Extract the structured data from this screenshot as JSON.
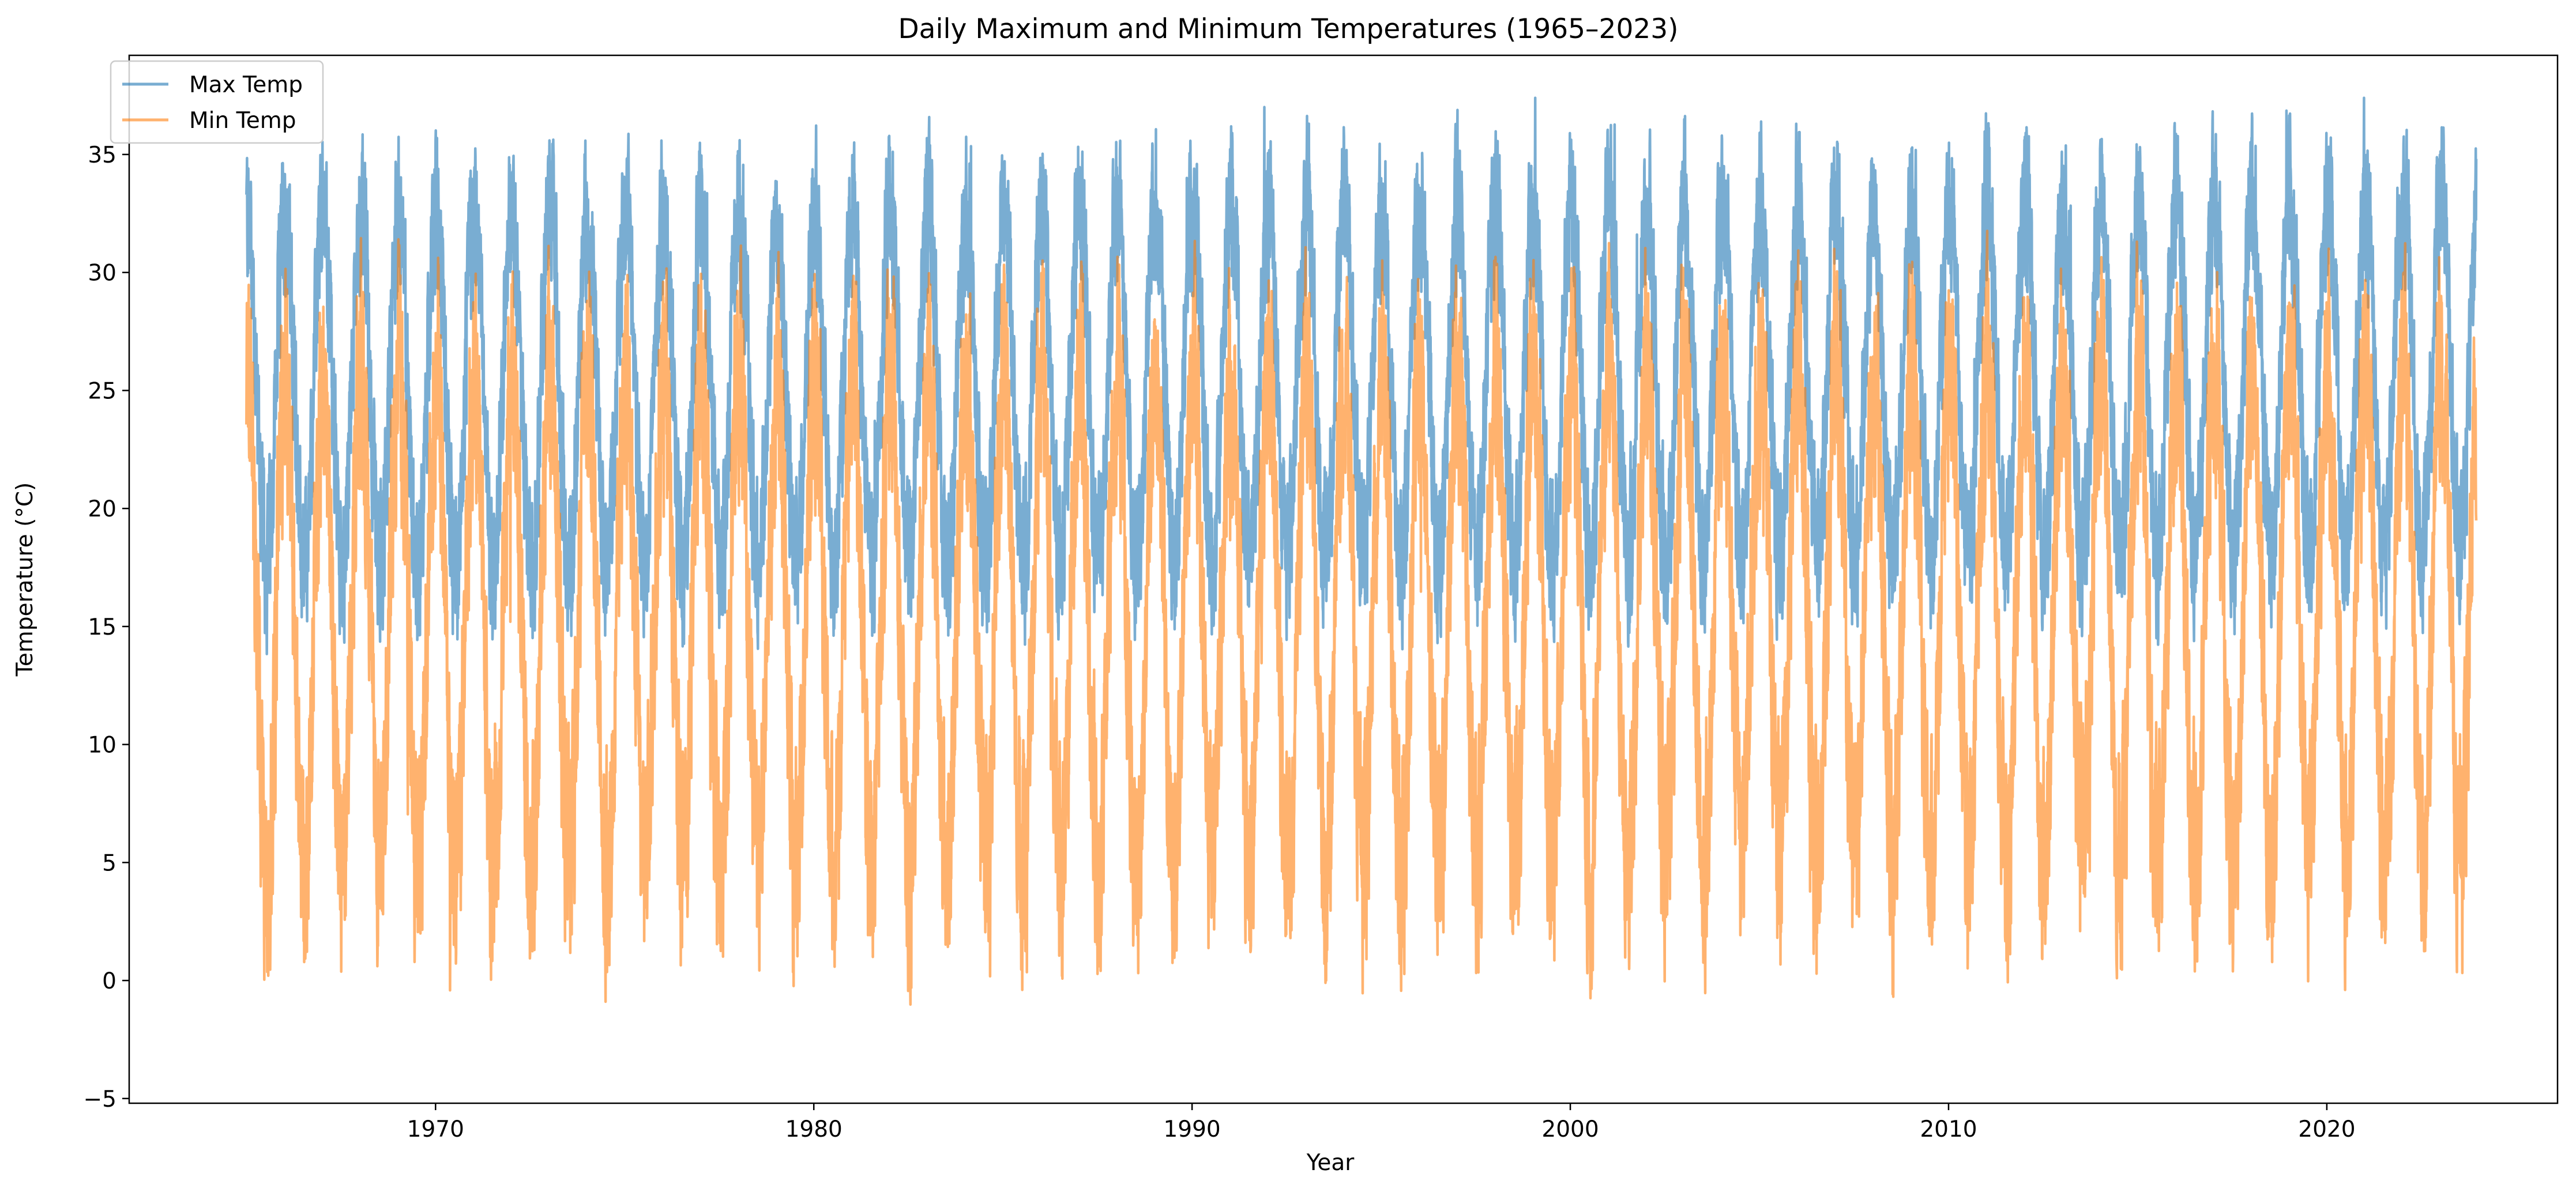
{
  "chart_data": {
    "type": "line",
    "title": "Daily Maximum and Minimum Temperatures (1965–2023)",
    "xlabel": "Year",
    "ylabel": "Temperature (°C)",
    "xlim": [
      1961.9,
      2026.1
    ],
    "ylim": [
      -5.2,
      39.2
    ],
    "x_ticks": [
      1970,
      1980,
      1990,
      2000,
      2010,
      2020
    ],
    "y_ticks": [
      -5,
      0,
      5,
      10,
      15,
      20,
      25,
      30,
      35
    ],
    "grid": false,
    "legend": {
      "position": "top-left"
    },
    "x_range": [
      1965.0,
      2023.95
    ],
    "series": [
      {
        "name": "Max Temp",
        "color": "#1f77b4",
        "opacity": 0.6,
        "typical_min": 17.5,
        "typical_max": 32.5,
        "extreme_high": 37.4
      },
      {
        "name": "Min Temp",
        "color": "#ff7f0e",
        "opacity": 0.6,
        "typical_min": 4.5,
        "typical_max": 25.5,
        "extreme_low": -3.1
      }
    ]
  }
}
